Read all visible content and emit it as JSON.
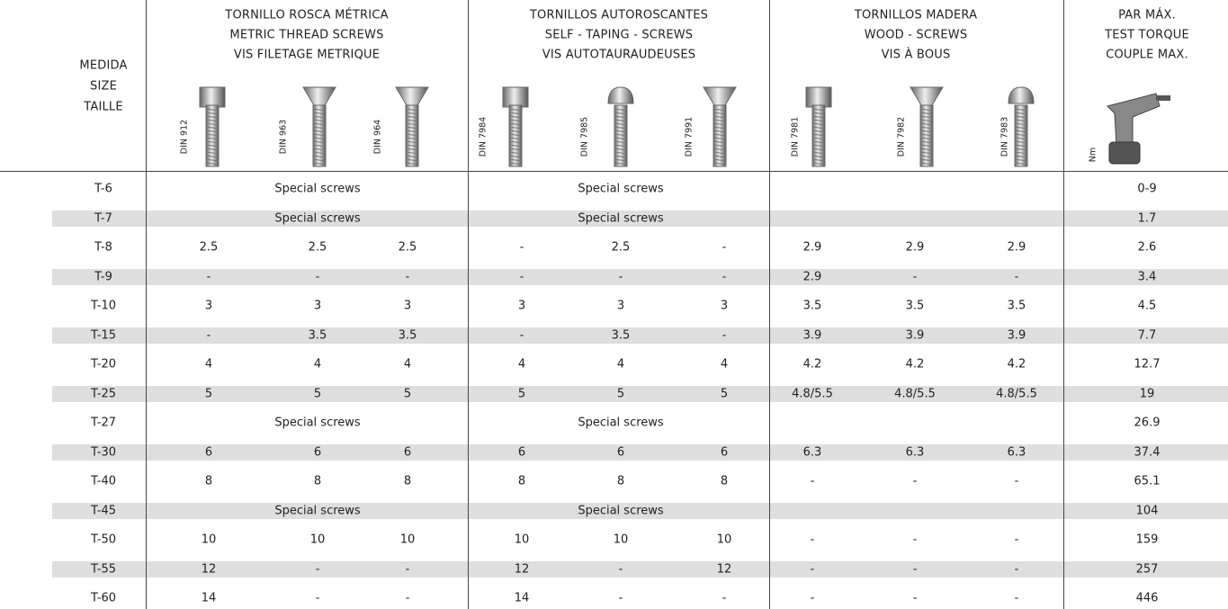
{
  "header": {
    "size": [
      "MEDIDA",
      "SIZE",
      "TAILLE"
    ],
    "groups": [
      {
        "title": [
          "TORNILLO ROSCA MÉTRICA",
          "METRIC THREAD SCREWS",
          "VIS FILETAGE METRIQUE"
        ],
        "standards": [
          "DIN 912",
          "DIN 963",
          "DIN 964"
        ]
      },
      {
        "title": [
          "TORNILLOS AUTOROSCANTES",
          "SELF - TAPING - SCREWS",
          "VIS AUTOTAURAUDEUSES"
        ],
        "standards": [
          "DIN 7984",
          "DIN 7985",
          "DIN 7991"
        ]
      },
      {
        "title": [
          "TORNILLOS MADERA",
          "WOOD - SCREWS",
          "VIS À BOUS"
        ],
        "standards": [
          "DIN 7981",
          "DIN 7982",
          "DIN 7983"
        ]
      }
    ],
    "torque": [
      "PAR MÁX.",
      "TEST TORQUE",
      "COUPLE MAX."
    ],
    "torque_unit": "Nm"
  },
  "table": {
    "rows": [
      {
        "size": "T-6",
        "groups": [
          "Special screws",
          "Special screws"
        ],
        "torque": "0-9"
      },
      {
        "size": "T-7",
        "groups": [
          "Special screws",
          "Special screws"
        ],
        "torque": "1.7"
      },
      {
        "size": "T-8",
        "groups": [
          [
            "2.5",
            "2.5",
            "2.5"
          ],
          [
            "-",
            "2.5",
            "-"
          ],
          [
            "2.9",
            "2.9",
            "2.9"
          ]
        ],
        "torque": "2.6"
      },
      {
        "size": "T-9",
        "groups": [
          [
            "-",
            "-",
            "-"
          ],
          [
            "-",
            "-",
            "-"
          ],
          [
            "2.9",
            "-",
            "-"
          ]
        ],
        "torque": "3.4"
      },
      {
        "size": "T-10",
        "groups": [
          [
            "3",
            "3",
            "3"
          ],
          [
            "3",
            "3",
            "3"
          ],
          [
            "3.5",
            "3.5",
            "3.5"
          ]
        ],
        "torque": "4.5"
      },
      {
        "size": "T-15",
        "groups": [
          [
            "-",
            "3.5",
            "3.5"
          ],
          [
            "-",
            "3.5",
            "-"
          ],
          [
            "3.9",
            "3.9",
            "3.9"
          ]
        ],
        "torque": "7.7"
      },
      {
        "size": "T-20",
        "groups": [
          [
            "4",
            "4",
            "4"
          ],
          [
            "4",
            "4",
            "4"
          ],
          [
            "4.2",
            "4.2",
            "4.2"
          ]
        ],
        "torque": "12.7"
      },
      {
        "size": "T-25",
        "groups": [
          [
            "5",
            "5",
            "5"
          ],
          [
            "5",
            "5",
            "5"
          ],
          [
            "4.8/5.5",
            "4.8/5.5",
            "4.8/5.5"
          ]
        ],
        "torque": "19"
      },
      {
        "size": "T-27",
        "groups": [
          "Special screws",
          "Special screws"
        ],
        "torque": "26.9"
      },
      {
        "size": "T-30",
        "groups": [
          [
            "6",
            "6",
            "6"
          ],
          [
            "6",
            "6",
            "6"
          ],
          [
            "6.3",
            "6.3",
            "6.3"
          ]
        ],
        "torque": "37.4"
      },
      {
        "size": "T-40",
        "groups": [
          [
            "8",
            "8",
            "8"
          ],
          [
            "8",
            "8",
            "8"
          ],
          [
            "-",
            "-",
            "-"
          ]
        ],
        "torque": "65.1"
      },
      {
        "size": "T-45",
        "groups": [
          "Special screws",
          "Special screws"
        ],
        "torque": "104"
      },
      {
        "size": "T-50",
        "groups": [
          [
            "10",
            "10",
            "10"
          ],
          [
            "10",
            "10",
            "10"
          ],
          [
            "-",
            "-",
            "-"
          ]
        ],
        "torque": "159"
      },
      {
        "size": "T-55",
        "groups": [
          [
            "12",
            "-",
            "-"
          ],
          [
            "12",
            "-",
            "12"
          ],
          [
            "-",
            "-",
            "-"
          ]
        ],
        "torque": "257"
      },
      {
        "size": "T-60",
        "groups": [
          [
            "14",
            "-",
            "-"
          ],
          [
            "14",
            "-",
            "-"
          ],
          [
            "-",
            "-",
            "-"
          ]
        ],
        "torque": "446"
      }
    ]
  }
}
